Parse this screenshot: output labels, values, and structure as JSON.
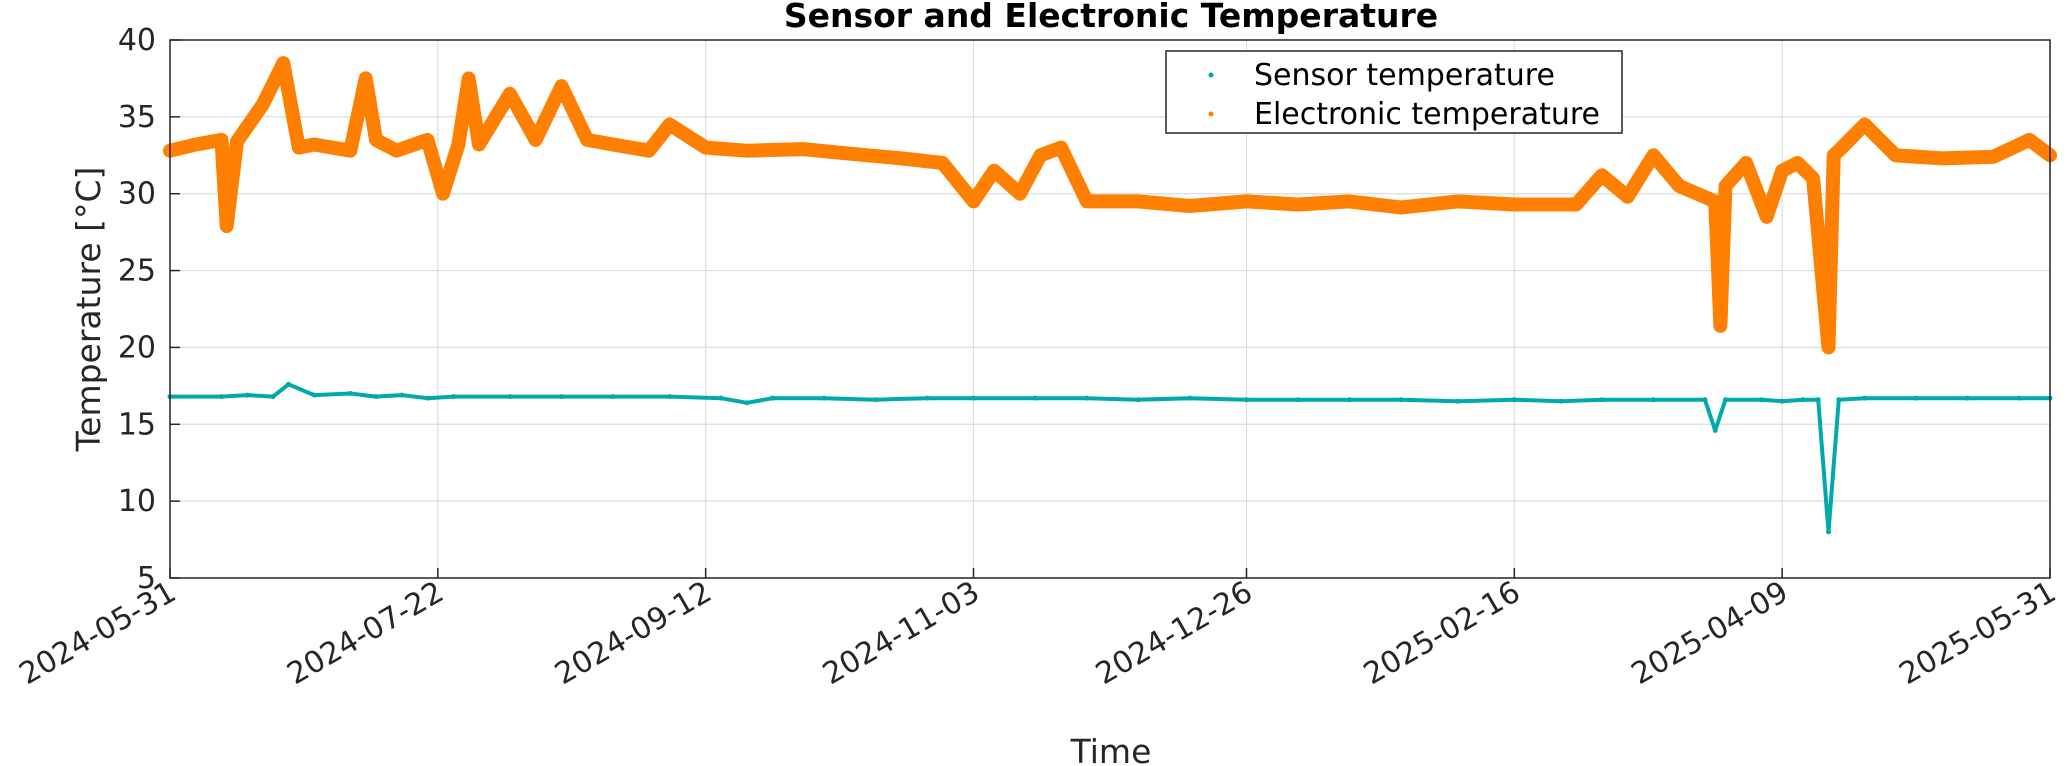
{
  "chart_data": {
    "type": "line",
    "title": "Sensor and Electronic Temperature",
    "xlabel": "Time",
    "ylabel": "Temperature [°C]",
    "xlim": [
      "2024-05-31",
      "2025-05-31"
    ],
    "ylim": [
      5,
      40
    ],
    "xticks": [
      "2024-05-31",
      "2024-07-22",
      "2024-09-12",
      "2024-11-03",
      "2024-12-26",
      "2025-02-16",
      "2025-04-09",
      "2025-05-31"
    ],
    "yticks": [
      5,
      10,
      15,
      20,
      25,
      30,
      35,
      40
    ],
    "grid": true,
    "legend_position": "top-right",
    "series": [
      {
        "name": "Sensor temperature",
        "color": "#00AAAA",
        "x": [
          "2024-05-31",
          "2024-06-10",
          "2024-06-15",
          "2024-06-20",
          "2024-06-23",
          "2024-06-28",
          "2024-07-05",
          "2024-07-10",
          "2024-07-15",
          "2024-07-20",
          "2024-07-25",
          "2024-08-05",
          "2024-08-15",
          "2024-08-25",
          "2024-09-05",
          "2024-09-15",
          "2024-09-20",
          "2024-09-25",
          "2024-10-05",
          "2024-10-15",
          "2024-10-25",
          "2024-11-03",
          "2024-11-15",
          "2024-11-25",
          "2024-12-05",
          "2024-12-15",
          "2024-12-26",
          "2025-01-05",
          "2025-01-15",
          "2025-01-25",
          "2025-02-05",
          "2025-02-16",
          "2025-02-25",
          "2025-03-05",
          "2025-03-15",
          "2025-03-25",
          "2025-03-27",
          "2025-03-29",
          "2025-04-05",
          "2025-04-09",
          "2025-04-13",
          "2025-04-16",
          "2025-04-18",
          "2025-04-20",
          "2025-04-25",
          "2025-05-05",
          "2025-05-15",
          "2025-05-25",
          "2025-05-31"
        ],
        "values": [
          16.8,
          16.8,
          16.9,
          16.8,
          17.6,
          16.9,
          17.0,
          16.8,
          16.9,
          16.7,
          16.8,
          16.8,
          16.8,
          16.8,
          16.8,
          16.7,
          16.4,
          16.7,
          16.7,
          16.6,
          16.7,
          16.7,
          16.7,
          16.7,
          16.6,
          16.7,
          16.6,
          16.6,
          16.6,
          16.6,
          16.5,
          16.6,
          16.5,
          16.6,
          16.6,
          16.6,
          14.6,
          16.6,
          16.6,
          16.5,
          16.6,
          16.6,
          8.0,
          16.6,
          16.7,
          16.7,
          16.7,
          16.7,
          16.7
        ]
      },
      {
        "name": "Electronic temperature",
        "color": "#FF8000",
        "x": [
          "2024-05-31",
          "2024-06-05",
          "2024-06-10",
          "2024-06-11",
          "2024-06-13",
          "2024-06-18",
          "2024-06-22",
          "2024-06-25",
          "2024-06-28",
          "2024-07-05",
          "2024-07-08",
          "2024-07-10",
          "2024-07-14",
          "2024-07-20",
          "2024-07-23",
          "2024-07-26",
          "2024-07-28",
          "2024-07-30",
          "2024-08-05",
          "2024-08-10",
          "2024-08-15",
          "2024-08-20",
          "2024-08-25",
          "2024-09-01",
          "2024-09-05",
          "2024-09-12",
          "2024-09-20",
          "2024-10-01",
          "2024-10-10",
          "2024-10-20",
          "2024-10-28",
          "2024-11-03",
          "2024-11-07",
          "2024-11-12",
          "2024-11-16",
          "2024-11-20",
          "2024-11-25",
          "2024-12-05",
          "2024-12-15",
          "2024-12-26",
          "2025-01-05",
          "2025-01-15",
          "2025-01-25",
          "2025-02-05",
          "2025-02-16",
          "2025-02-28",
          "2025-03-05",
          "2025-03-10",
          "2025-03-15",
          "2025-03-20",
          "2025-03-27",
          "2025-03-28",
          "2025-03-29",
          "2025-04-02",
          "2025-04-06",
          "2025-04-09",
          "2025-04-12",
          "2025-04-15",
          "2025-04-18",
          "2025-04-19",
          "2025-04-20",
          "2025-04-25",
          "2025-05-01",
          "2025-05-10",
          "2025-05-20",
          "2025-05-27",
          "2025-05-31"
        ],
        "values": [
          32.8,
          33.2,
          33.5,
          27.9,
          33.4,
          35.8,
          38.5,
          33.0,
          33.2,
          32.8,
          37.5,
          33.5,
          32.8,
          33.5,
          30.0,
          33.2,
          37.5,
          33.2,
          36.5,
          33.5,
          37.0,
          33.5,
          33.2,
          32.8,
          34.5,
          33.0,
          32.8,
          32.9,
          32.6,
          32.3,
          32.0,
          29.5,
          31.5,
          30.0,
          32.5,
          33.0,
          29.5,
          29.5,
          29.2,
          29.5,
          29.3,
          29.5,
          29.1,
          29.5,
          29.3,
          29.3,
          31.2,
          29.8,
          32.5,
          30.5,
          29.5,
          21.4,
          30.5,
          32.0,
          28.5,
          31.5,
          32.0,
          31.0,
          20.0,
          32.5,
          32.8,
          34.5,
          32.5,
          32.3,
          32.4,
          33.5,
          32.5
        ]
      }
    ]
  }
}
